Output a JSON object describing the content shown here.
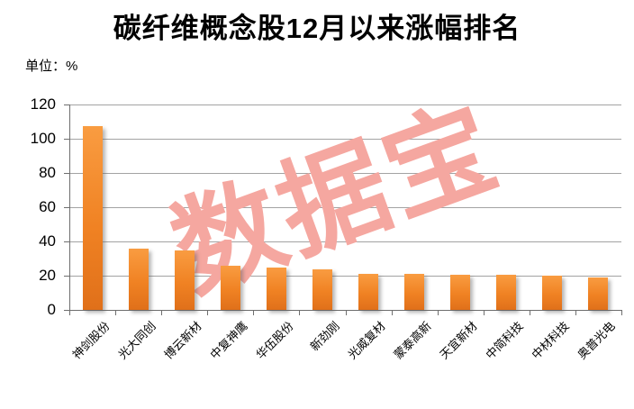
{
  "title": "碳纤维概念股12月以来涨幅排名",
  "unit_label": "单位：%",
  "watermark": "数据宝",
  "chart_data": {
    "type": "bar",
    "title": "碳纤维概念股12月以来涨幅排名",
    "unit": "%",
    "categories": [
      "神剑股份",
      "光大同创",
      "博云新材",
      "中复神鹰",
      "华伍股份",
      "新劲刚",
      "光威复材",
      "蒙泰高新",
      "天宜新材",
      "中简科技",
      "中材科技",
      "奥普光电"
    ],
    "values": [
      107.5,
      36,
      35,
      26,
      25,
      23.5,
      21,
      21,
      20.5,
      20.5,
      20,
      19
    ],
    "xlabel": "",
    "ylabel": "",
    "ylim": [
      0,
      120
    ],
    "yticks": [
      0,
      20,
      40,
      60,
      80,
      100,
      120
    ],
    "grid": true,
    "legend_position": "none",
    "bar_color": "#F08223",
    "bar_gradient_top": "#F99C41",
    "bar_gradient_bottom": "#E0701A",
    "axis_color": "#6E6E6E",
    "gridline_color": "#A3A3A3",
    "watermark_text": "数据宝",
    "watermark_color": "#F5A7A0"
  }
}
